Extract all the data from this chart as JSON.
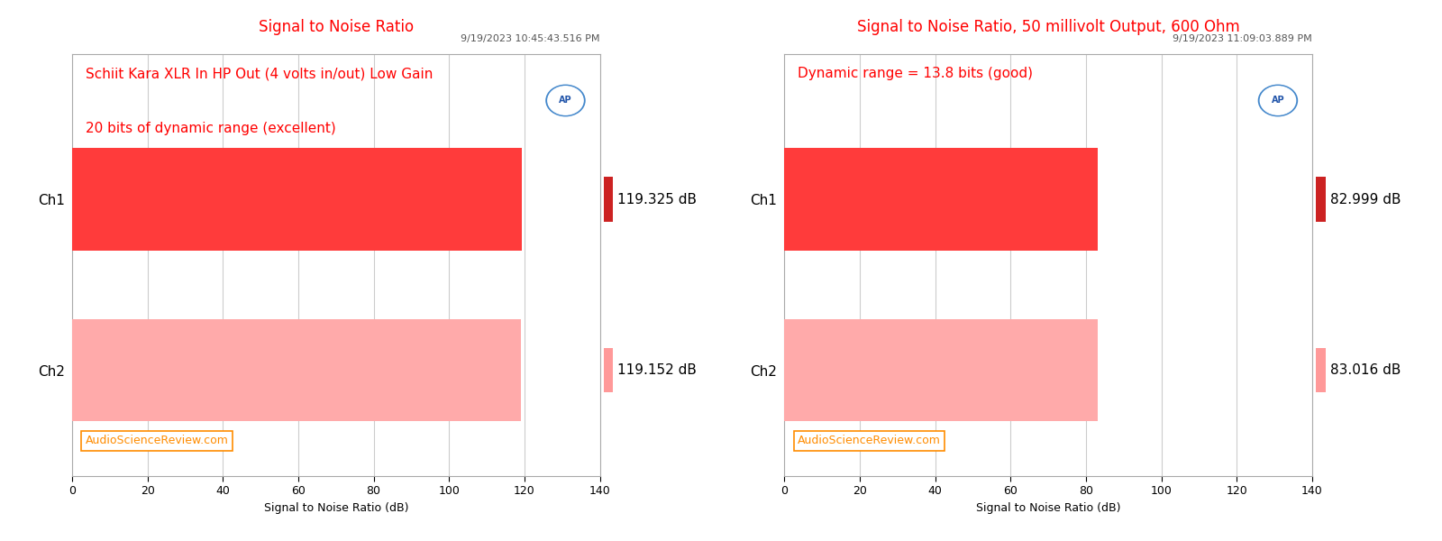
{
  "chart1": {
    "title": "Signal to Noise Ratio",
    "timestamp": "9/19/2023 10:45:43.516 PM",
    "annotation_line1": "Schiit Kara XLR In HP Out (4 volts in/out) Low Gain",
    "annotation_line2": "20 bits of dynamic range (excellent)",
    "channels": [
      "Ch1",
      "Ch2"
    ],
    "values": [
      119.325,
      119.152
    ],
    "labels": [
      "119.325 dB",
      "119.152 dB"
    ],
    "bar_colors": [
      "#FF3B3B",
      "#FFAAAA"
    ],
    "marker_colors": [
      "#CC2222",
      "#FF9999"
    ],
    "xlabel": "Signal to Noise Ratio (dB)",
    "xlim": [
      0,
      140
    ],
    "xticks": [
      0,
      20,
      40,
      60,
      80,
      100,
      120,
      140
    ],
    "watermark": "AudioScienceReview.com"
  },
  "chart2": {
    "title": "Signal to Noise Ratio, 50 millivolt Output, 600 Ohm",
    "timestamp": "9/19/2023 11:09:03.889 PM",
    "annotation_line1": "Dynamic range = 13.8 bits (good)",
    "annotation_line2": "",
    "channels": [
      "Ch1",
      "Ch2"
    ],
    "values": [
      82.999,
      83.016
    ],
    "labels": [
      "82.999 dB",
      "83.016 dB"
    ],
    "bar_colors": [
      "#FF3B3B",
      "#FFAAAA"
    ],
    "marker_colors": [
      "#CC2222",
      "#FF9999"
    ],
    "xlabel": "Signal to Noise Ratio (dB)",
    "xlim": [
      0,
      140
    ],
    "xticks": [
      0,
      20,
      40,
      60,
      80,
      100,
      120,
      140
    ],
    "watermark": "AudioScienceReview.com"
  },
  "bg_color": "#FFFFFF",
  "title_color": "#FF0000",
  "timestamp_color": "#555555",
  "annotation_color": "#FF0000",
  "watermark_color": "#FF8C00",
  "label_color": "#000000",
  "grid_color": "#CCCCCC",
  "bar_height": 0.6,
  "ytick_fontsize": 11,
  "xtick_fontsize": 9,
  "xlabel_fontsize": 9,
  "title_fontsize": 12,
  "annotation_fontsize": 11,
  "label_fontsize": 11,
  "timestamp_fontsize": 8,
  "watermark_fontsize": 9
}
